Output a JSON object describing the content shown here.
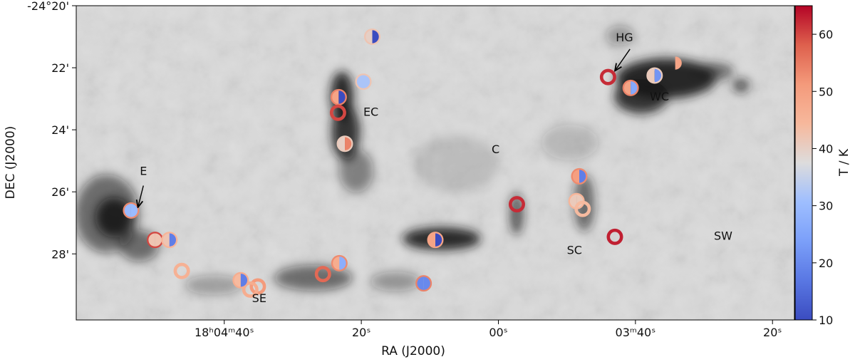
{
  "chart_data": {
    "type": "scatter",
    "xlabel": "RA (J2000)",
    "ylabel": "DEC (J2000)",
    "colorbar_label": "T / K",
    "x_ticks": [
      {
        "main": "18ʰ04ᵐ40ˢ",
        "ra_s": 280
      },
      {
        "main": "20ˢ",
        "ra_s": 260
      },
      {
        "main": "00ˢ",
        "ra_s": 240
      },
      {
        "main": "03ᵐ40ˢ",
        "ra_s": 220
      },
      {
        "main": "20ˢ",
        "ra_s": 200
      }
    ],
    "y_ticks": [
      {
        "label": "-24°20'",
        "dec": -20
      },
      {
        "label": "22'",
        "dec": -22
      },
      {
        "label": "24'",
        "dec": -24
      },
      {
        "label": "26'",
        "dec": -26
      },
      {
        "label": "28'",
        "dec": -28
      }
    ],
    "colorbar": {
      "min": 10,
      "max": 65,
      "ticks": [
        "10",
        "20",
        "30",
        "40",
        "50",
        "60"
      ],
      "tick_values": [
        10,
        20,
        30,
        40,
        50,
        60
      ],
      "colormap": "coolwarm"
    },
    "regions": [
      {
        "label": "HG",
        "ra_s": 221.6,
        "dec": -21.15
      },
      {
        "label": "WC",
        "ra_s": 216.5,
        "dec": -23.05
      },
      {
        "label": "EC",
        "ra_s": 258.6,
        "dec": -23.55
      },
      {
        "label": "C",
        "ra_s": 240.4,
        "dec": -24.75
      },
      {
        "label": "E",
        "ra_s": 291.8,
        "dec": -25.45
      },
      {
        "label": "SC",
        "ra_s": 228.9,
        "dec": -28.0
      },
      {
        "label": "SW",
        "ra_s": 207.2,
        "dec": -27.55
      },
      {
        "label": "SE",
        "ra_s": 274.9,
        "dec": -29.55
      }
    ],
    "arrows": [
      {
        "label": "HG",
        "from_ra_s": 220.8,
        "from_dec": -21.4,
        "to_ra_s": 223.0,
        "to_dec": -22.1
      },
      {
        "label": "E",
        "from_ra_s": 291.8,
        "from_dec": -25.8,
        "to_ra_s": 292.6,
        "to_dec": -26.5
      }
    ],
    "points": [
      {
        "ra_s": 224.0,
        "dec": -22.3,
        "t_ring": 62,
        "t_left": null,
        "t_right": null
      },
      {
        "ra_s": 220.7,
        "dec": -22.65,
        "t_ring": 54,
        "t_left": 49,
        "t_right": 26
      },
      {
        "ra_s": 217.2,
        "dec": -22.25,
        "t_ring": 41,
        "t_left": 41,
        "t_right": 22
      },
      {
        "ra_s": 214.2,
        "dec": -21.85,
        "t_ring": null,
        "t_left": null,
        "t_right": 49
      },
      {
        "ra_s": 258.4,
        "dec": -21.0,
        "t_ring": 42,
        "t_left": 40,
        "t_right": 5
      },
      {
        "ra_s": 259.7,
        "dec": -22.45,
        "t_ring": 42,
        "t_left": 32,
        "t_right": 32
      },
      {
        "ra_s": 263.3,
        "dec": -22.95,
        "t_ring": 54,
        "t_left": 49,
        "t_right": 5
      },
      {
        "ra_s": 263.4,
        "dec": -23.45,
        "t_ring": 60,
        "t_left": null,
        "t_right": null
      },
      {
        "ra_s": 262.4,
        "dec": -24.45,
        "t_ring": 41,
        "t_left": 40,
        "t_right": 54
      },
      {
        "ra_s": 293.6,
        "dec": -26.6,
        "t_ring": 53,
        "t_left": 30,
        "t_right": 30
      },
      {
        "ra_s": 290.1,
        "dec": -27.55,
        "t_ring": 60,
        "t_left": 42,
        "t_right": 42
      },
      {
        "ra_s": 288.0,
        "dec": -27.55,
        "t_ring": 45,
        "t_left": 42,
        "t_right": 18
      },
      {
        "ra_s": 237.3,
        "dec": -26.4,
        "t_ring": 62,
        "t_left": null,
        "t_right": null
      },
      {
        "ra_s": 228.2,
        "dec": -25.5,
        "t_ring": 53,
        "t_left": 50,
        "t_right": 18
      },
      {
        "ra_s": 228.6,
        "dec": -26.3,
        "t_ring": 45,
        "t_left": 41,
        "t_right": 41
      },
      {
        "ra_s": 227.7,
        "dec": -26.55,
        "t_ring": 44,
        "t_left": null,
        "t_right": null
      },
      {
        "ra_s": 223.0,
        "dec": -27.45,
        "t_ring": 63,
        "t_left": null,
        "t_right": null
      },
      {
        "ra_s": 249.2,
        "dec": -27.55,
        "t_ring": 49,
        "t_left": 49,
        "t_right": 5
      },
      {
        "ra_s": 250.9,
        "dec": -28.95,
        "t_ring": 54,
        "t_left": 20,
        "t_right": 20
      },
      {
        "ra_s": 263.2,
        "dec": -28.3,
        "t_ring": 53,
        "t_left": 47,
        "t_right": 27
      },
      {
        "ra_s": 265.6,
        "dec": -28.65,
        "t_ring": 57,
        "t_left": null,
        "t_right": null
      },
      {
        "ra_s": 286.2,
        "dec": -28.55,
        "t_ring": 46,
        "t_left": null,
        "t_right": null
      },
      {
        "ra_s": 275.1,
        "dec": -29.05,
        "t_ring": 51,
        "t_left": null,
        "t_right": null
      },
      {
        "ra_s": 276.2,
        "dec": -29.15,
        "t_ring": 47,
        "t_left": null,
        "t_right": null
      },
      {
        "ra_s": 277.6,
        "dec": -28.85,
        "t_ring": 47,
        "t_left": 44,
        "t_right": 18
      }
    ]
  }
}
